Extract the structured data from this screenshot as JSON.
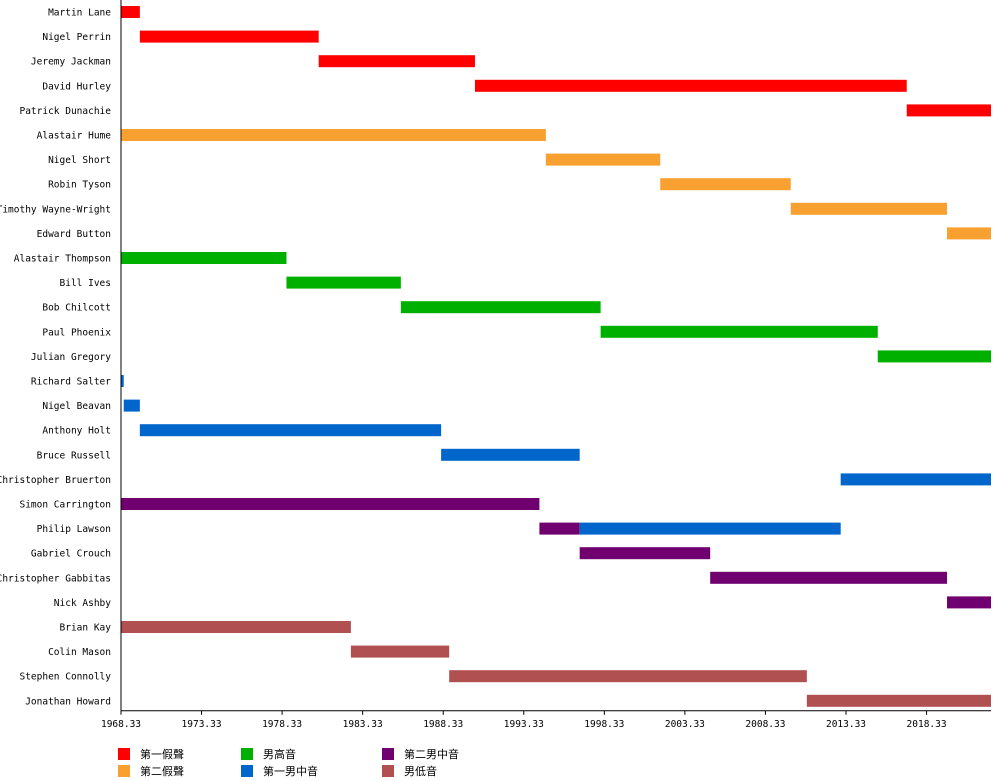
{
  "chart_data": {
    "type": "gantt",
    "x_range": [
      1968.33,
      2022.33
    ],
    "x_ticks": [
      "1968.33",
      "1973.33",
      "1978.33",
      "1983.33",
      "1988.33",
      "1993.33",
      "1998.33",
      "2003.33",
      "2008.33",
      "2013.33",
      "2018.33"
    ],
    "legend": [
      {
        "key": "ct1",
        "label": "第一假聲",
        "color": "#ff0000"
      },
      {
        "key": "ct2",
        "label": "第二假聲",
        "color": "#f8a030"
      },
      {
        "key": "ten",
        "label": "男高音",
        "color": "#00b000"
      },
      {
        "key": "bar1",
        "label": "第一男中音",
        "color": "#0066cc"
      },
      {
        "key": "bar2",
        "label": "第二男中音",
        "color": "#700070"
      },
      {
        "key": "bass",
        "label": "男低音",
        "color": "#b05050"
      }
    ],
    "rows": [
      {
        "name": "Martin Lane",
        "segments": [
          {
            "start": 1968.33,
            "end": 1969.5,
            "part": "ct1"
          }
        ]
      },
      {
        "name": "Nigel Perrin",
        "segments": [
          {
            "start": 1969.5,
            "end": 1980.6,
            "part": "ct1"
          }
        ]
      },
      {
        "name": "Jeremy Jackman",
        "segments": [
          {
            "start": 1980.6,
            "end": 1990.3,
            "part": "ct1"
          }
        ]
      },
      {
        "name": "David Hurley",
        "segments": [
          {
            "start": 1990.3,
            "end": 2017.1,
            "part": "ct1"
          }
        ]
      },
      {
        "name": "Patrick Dunachie",
        "segments": [
          {
            "start": 2017.1,
            "end": 2022.33,
            "part": "ct1"
          }
        ]
      },
      {
        "name": "Alastair Hume",
        "segments": [
          {
            "start": 1968.33,
            "end": 1994.7,
            "part": "ct2"
          }
        ]
      },
      {
        "name": "Nigel Short",
        "segments": [
          {
            "start": 1994.7,
            "end": 2001.8,
            "part": "ct2"
          }
        ]
      },
      {
        "name": "Robin Tyson",
        "segments": [
          {
            "start": 2001.8,
            "end": 2009.9,
            "part": "ct2"
          }
        ]
      },
      {
        "name": "Timothy Wayne-Wright",
        "segments": [
          {
            "start": 2009.9,
            "end": 2019.6,
            "part": "ct2"
          }
        ]
      },
      {
        "name": "Edward Button",
        "segments": [
          {
            "start": 2019.6,
            "end": 2022.33,
            "part": "ct2"
          }
        ]
      },
      {
        "name": "Alastair Thompson",
        "segments": [
          {
            "start": 1968.33,
            "end": 1978.6,
            "part": "ten"
          }
        ]
      },
      {
        "name": "Bill Ives",
        "segments": [
          {
            "start": 1978.6,
            "end": 1985.7,
            "part": "ten"
          }
        ]
      },
      {
        "name": "Bob Chilcott",
        "segments": [
          {
            "start": 1985.7,
            "end": 1998.1,
            "part": "ten"
          }
        ]
      },
      {
        "name": "Paul Phoenix",
        "segments": [
          {
            "start": 1998.1,
            "end": 2015.3,
            "part": "ten"
          }
        ]
      },
      {
        "name": "Julian Gregory",
        "segments": [
          {
            "start": 2015.3,
            "end": 2022.33,
            "part": "ten"
          }
        ]
      },
      {
        "name": "Richard Salter",
        "segments": [
          {
            "start": 1968.33,
            "end": 1968.5,
            "part": "bar1"
          }
        ]
      },
      {
        "name": "Nigel Beavan",
        "segments": [
          {
            "start": 1968.5,
            "end": 1969.5,
            "part": "bar1"
          }
        ]
      },
      {
        "name": "Anthony Holt",
        "segments": [
          {
            "start": 1969.5,
            "end": 1988.2,
            "part": "bar1"
          }
        ]
      },
      {
        "name": "Bruce Russell",
        "segments": [
          {
            "start": 1988.2,
            "end": 1996.8,
            "part": "bar1"
          }
        ]
      },
      {
        "name": "Christopher Bruerton",
        "segments": [
          {
            "start": 2013.0,
            "end": 2022.33,
            "part": "bar1"
          }
        ]
      },
      {
        "name": "Simon Carrington",
        "segments": [
          {
            "start": 1968.33,
            "end": 1994.3,
            "part": "bar2"
          }
        ]
      },
      {
        "name": "Philip Lawson",
        "segments": [
          {
            "start": 1994.3,
            "end": 1996.8,
            "part": "bar2"
          },
          {
            "start": 1996.8,
            "end": 2013.0,
            "part": "bar1"
          }
        ]
      },
      {
        "name": "Gabriel Crouch",
        "segments": [
          {
            "start": 1996.8,
            "end": 2004.9,
            "part": "bar2"
          }
        ]
      },
      {
        "name": "Christopher Gabbitas",
        "segments": [
          {
            "start": 2004.9,
            "end": 2019.6,
            "part": "bar2"
          }
        ]
      },
      {
        "name": "Nick Ashby",
        "segments": [
          {
            "start": 2019.6,
            "end": 2022.33,
            "part": "bar2"
          }
        ]
      },
      {
        "name": "Brian Kay",
        "segments": [
          {
            "start": 1968.33,
            "end": 1982.6,
            "part": "bass"
          }
        ]
      },
      {
        "name": "Colin Mason",
        "segments": [
          {
            "start": 1982.6,
            "end": 1988.7,
            "part": "bass"
          }
        ]
      },
      {
        "name": "Stephen Connolly",
        "segments": [
          {
            "start": 1988.7,
            "end": 2010.9,
            "part": "bass"
          }
        ]
      },
      {
        "name": "Jonathan Howard",
        "segments": [
          {
            "start": 2010.9,
            "end": 2022.33,
            "part": "bass"
          }
        ]
      }
    ]
  }
}
